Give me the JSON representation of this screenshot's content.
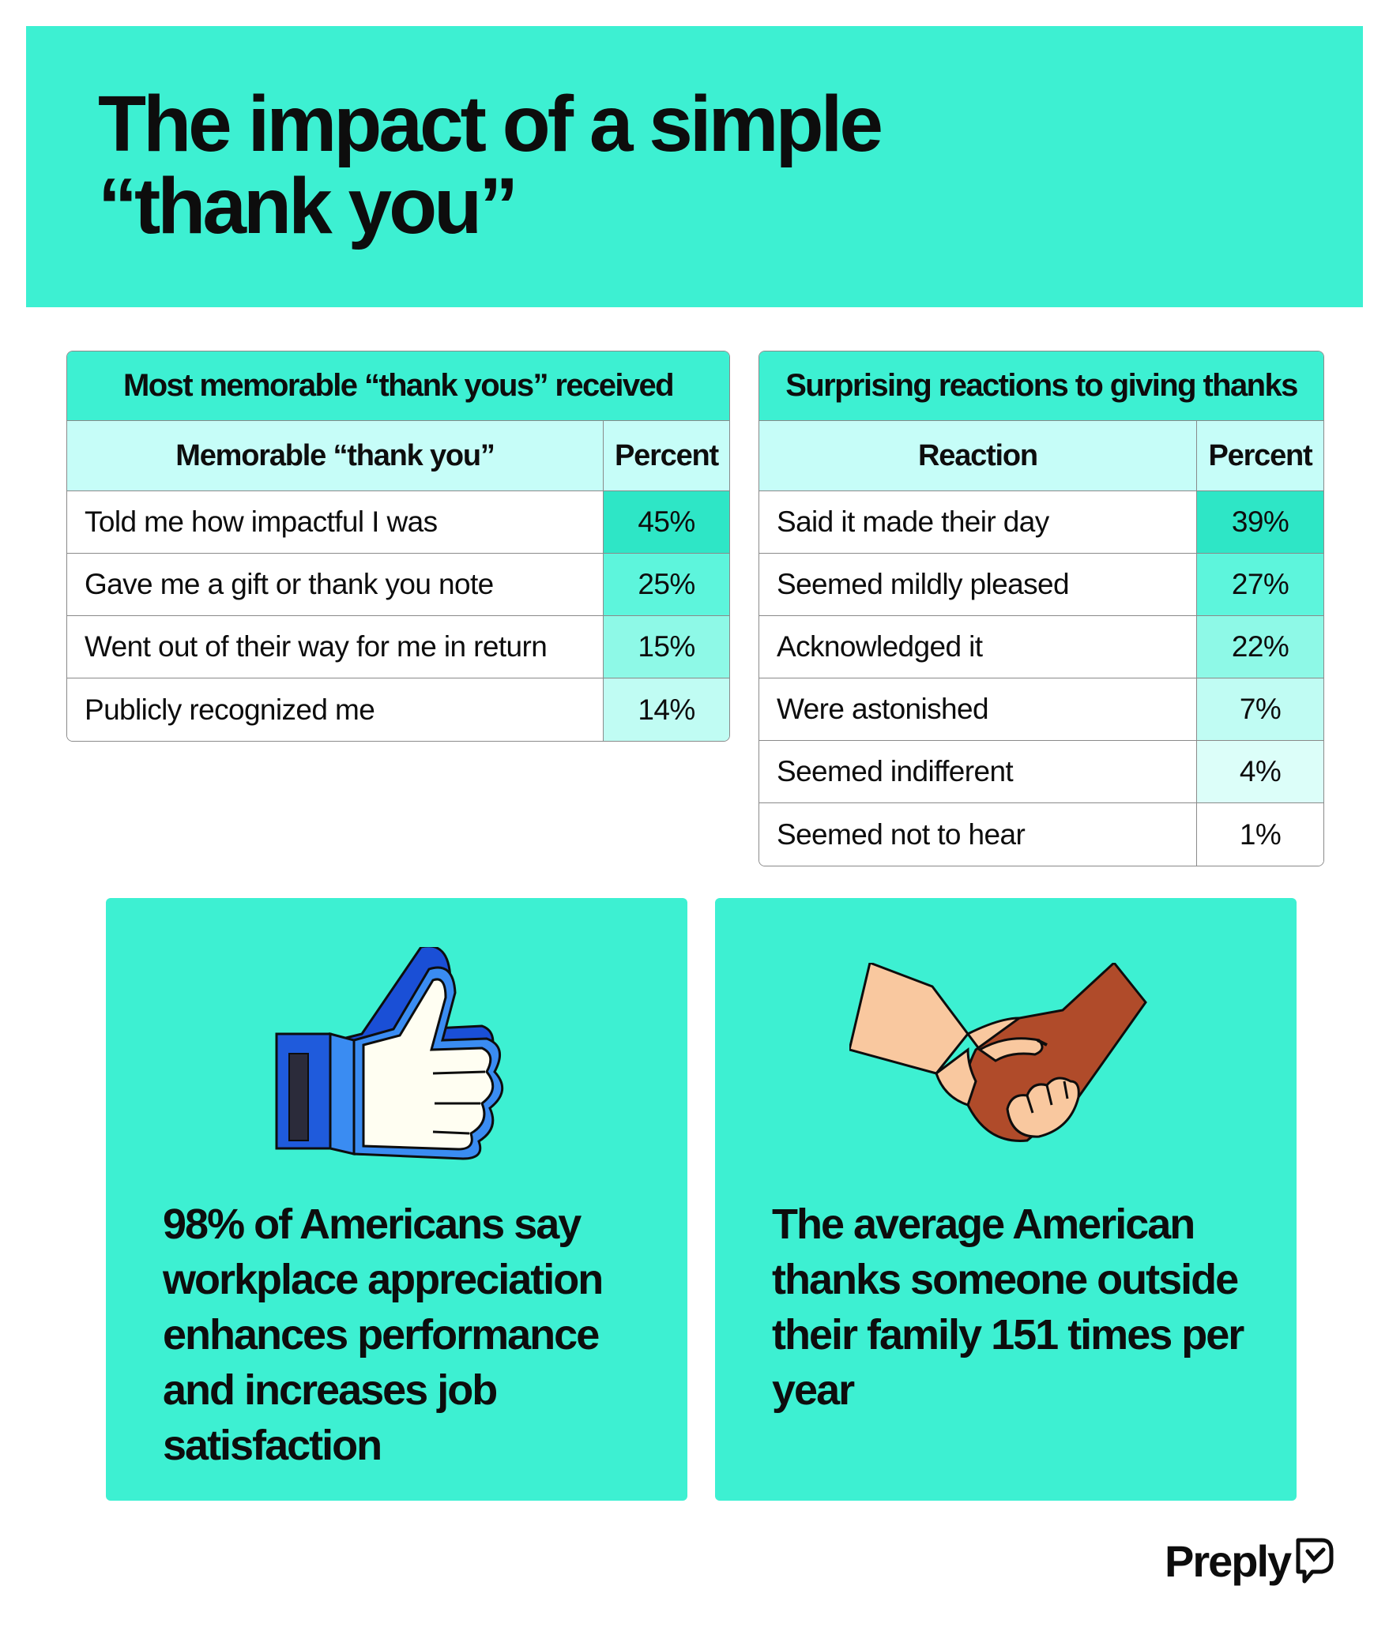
{
  "header": {
    "title": "The impact of a simple “thank you”"
  },
  "chart_data": [
    {
      "type": "table",
      "title": "Most memorable “thank yous” received",
      "columns": [
        "Memorable “thank you”",
        "Percent"
      ],
      "rows": [
        {
          "label": "Told me how impactful I was",
          "value": "45%"
        },
        {
          "label": "Gave me a gift or thank you note",
          "value": "25%"
        },
        {
          "label": "Went out of their way for me in return",
          "value": "15%"
        },
        {
          "label": "Publicly recognized me",
          "value": "14%"
        }
      ]
    },
    {
      "type": "table",
      "title": "Surprising reactions to giving thanks",
      "columns": [
        "Reaction",
        "Percent"
      ],
      "rows": [
        {
          "label": "Said it made their day",
          "value": "39%"
        },
        {
          "label": "Seemed mildly pleased",
          "value": "27%"
        },
        {
          "label": "Acknowledged it",
          "value": "22%"
        },
        {
          "label": "Were astonished",
          "value": "7%"
        },
        {
          "label": "Seemed indifferent",
          "value": "4%"
        },
        {
          "label": "Seemed not to hear",
          "value": "1%"
        }
      ]
    }
  ],
  "cards": [
    {
      "icon": "thumbs-up-icon",
      "text": "98% of Americans say workplace appreciation enhances performance and increases job satisfaction"
    },
    {
      "icon": "handshake-icon",
      "text": "The average American thanks someone outside their family 151 times per year"
    }
  ],
  "brand": {
    "name": "Preply",
    "icon": "preply-logo-icon"
  },
  "colors": {
    "accent": "#3df0d2",
    "header_row": "#c6fdf8",
    "percent_shades": [
      "#2ee6c6",
      "#5df5dc",
      "#8ef9e7",
      "#c0fcf3",
      "#dcfef9",
      "#ffffff"
    ]
  }
}
